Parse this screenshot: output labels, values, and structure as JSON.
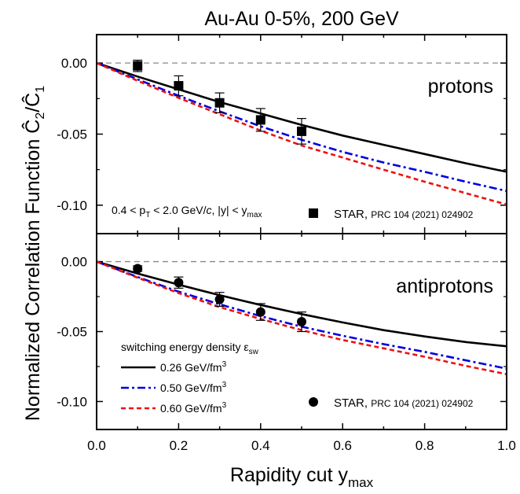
{
  "chart_data": [
    {
      "panel": "protons",
      "type": "line",
      "title": "Au-Au 0-5%, 200 GeV",
      "panel_label": "protons",
      "annotation": "0.4 < p_T < 2.0 GeV/c, |y| < y_max",
      "xlabel": "Rapidity cut y_max",
      "ylabel": "Normalized Correlation Function Ĉ2/Ĉ1",
      "xlim": [
        0.0,
        1.0
      ],
      "ylim": [
        -0.12,
        0.02
      ],
      "x_ticks": [
        "0.0",
        "0.2",
        "0.4",
        "0.6",
        "0.8",
        "1.0"
      ],
      "y_ticks": [
        "0.00",
        "-0.05",
        "-0.10"
      ],
      "reference_line": 0.0,
      "series": [
        {
          "style": "solid",
          "color": "#000000",
          "x": [
            0.0,
            0.1,
            0.2,
            0.3,
            0.4,
            0.5,
            0.6,
            0.7,
            0.8,
            0.9,
            1.0
          ],
          "y": [
            0.0,
            -0.0095,
            -0.0185,
            -0.0275,
            -0.0355,
            -0.0435,
            -0.051,
            -0.0575,
            -0.064,
            -0.0705,
            -0.0765
          ]
        },
        {
          "style": "dashdot",
          "color": "#0000dd",
          "x": [
            0.0,
            0.1,
            0.2,
            0.3,
            0.4,
            0.5,
            0.6,
            0.7,
            0.8,
            0.9,
            1.0
          ],
          "y": [
            0.0,
            -0.0115,
            -0.023,
            -0.034,
            -0.0445,
            -0.054,
            -0.0625,
            -0.07,
            -0.0765,
            -0.0835,
            -0.09
          ]
        },
        {
          "style": "dashed",
          "color": "#ee1111",
          "x": [
            0.0,
            0.1,
            0.2,
            0.3,
            0.4,
            0.5,
            0.6,
            0.7,
            0.8,
            0.9,
            1.0
          ],
          "y": [
            0.0,
            -0.0125,
            -0.0245,
            -0.036,
            -0.0475,
            -0.058,
            -0.0665,
            -0.075,
            -0.0835,
            -0.0915,
            -0.0995
          ]
        }
      ],
      "data_points": {
        "name": "STAR, PRC 104 (2021) 024902",
        "marker": "square",
        "x": [
          0.1,
          0.2,
          0.3,
          0.4,
          0.5
        ],
        "y": [
          -0.002,
          -0.016,
          -0.028,
          -0.04,
          -0.048
        ],
        "err": [
          0.004,
          0.007,
          0.007,
          0.008,
          0.009
        ]
      }
    },
    {
      "panel": "antiprotons",
      "type": "line",
      "panel_label": "antiprotons",
      "legend_title": "switching energy density ε_sw",
      "xlim": [
        0.0,
        1.0
      ],
      "ylim": [
        -0.12,
        0.02
      ],
      "y_ticks": [
        "0.00",
        "-0.05",
        "-0.10"
      ],
      "reference_line": 0.0,
      "series": [
        {
          "name": "0.26 GeV/fm³",
          "style": "solid",
          "color": "#000000",
          "x": [
            0.0,
            0.1,
            0.2,
            0.3,
            0.4,
            0.5,
            0.6,
            0.7,
            0.8,
            0.9,
            1.0
          ],
          "y": [
            0.0,
            -0.0085,
            -0.0165,
            -0.024,
            -0.031,
            -0.0375,
            -0.0435,
            -0.049,
            -0.0535,
            -0.0575,
            -0.0605
          ]
        },
        {
          "name": "0.50 GeV/fm³",
          "style": "dashdot",
          "color": "#0000dd",
          "x": [
            0.0,
            0.1,
            0.2,
            0.3,
            0.4,
            0.5,
            0.6,
            0.7,
            0.8,
            0.9,
            1.0
          ],
          "y": [
            0.0,
            -0.011,
            -0.0215,
            -0.0305,
            -0.039,
            -0.0465,
            -0.053,
            -0.059,
            -0.0645,
            -0.0705,
            -0.0765
          ]
        },
        {
          "name": "0.60 GeV/fm³",
          "style": "dashed",
          "color": "#ee1111",
          "x": [
            0.0,
            0.1,
            0.2,
            0.3,
            0.4,
            0.5,
            0.6,
            0.7,
            0.8,
            0.9,
            1.0
          ],
          "y": [
            0.0,
            -0.0115,
            -0.0225,
            -0.0325,
            -0.041,
            -0.049,
            -0.056,
            -0.062,
            -0.068,
            -0.0745,
            -0.0805
          ]
        }
      ],
      "data_points": {
        "name": "STAR, PRC 104 (2021) 024902",
        "marker": "circle",
        "x": [
          0.1,
          0.2,
          0.3,
          0.4,
          0.5
        ],
        "y": [
          -0.005,
          -0.015,
          -0.027,
          -0.036,
          -0.043
        ],
        "err": [
          0.002,
          0.004,
          0.005,
          0.006,
          0.007
        ]
      }
    }
  ]
}
